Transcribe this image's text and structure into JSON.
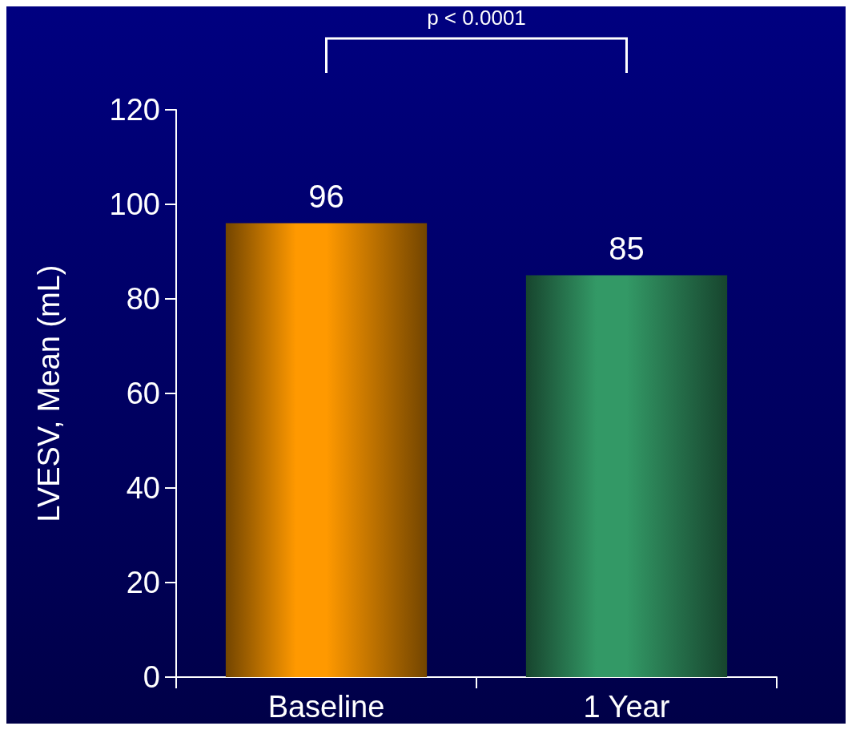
{
  "chart_data": {
    "type": "bar",
    "categories": [
      "Baseline",
      "1 Year"
    ],
    "values": [
      96,
      85
    ],
    "colors": [
      "#ff9900",
      "#339966"
    ],
    "ylabel": "LVESV, Mean (mL)",
    "ylim": [
      0,
      120
    ],
    "yticks": [
      0,
      20,
      40,
      60,
      80,
      100,
      120
    ],
    "data_labels": true,
    "grid": false,
    "annotations": [
      "p < 0.0001"
    ]
  }
}
